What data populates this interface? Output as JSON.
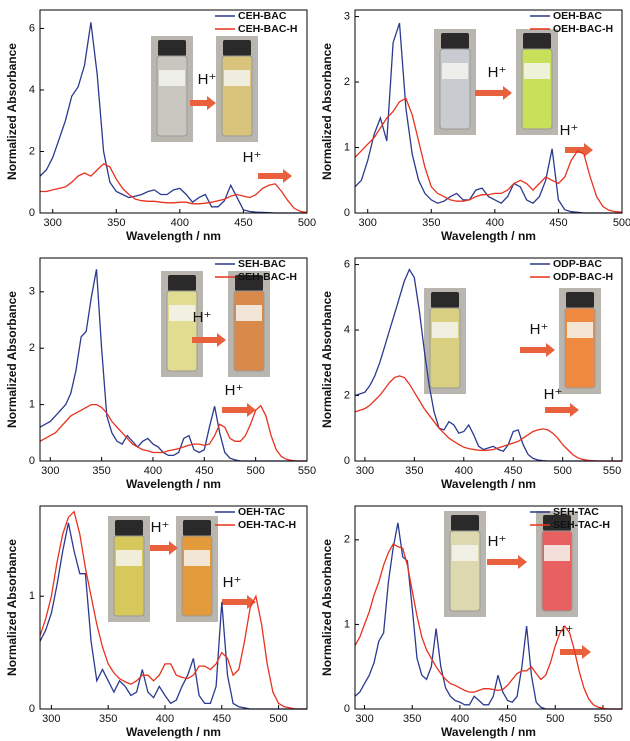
{
  "chart_data": [
    {
      "type": "line",
      "xlabel": "Wavelength / nm",
      "ylabel": "Normalized Absorbance",
      "xlim": [
        290,
        500
      ],
      "xticks": [
        300,
        350,
        400,
        450,
        500
      ],
      "ylim": [
        0,
        6.6
      ],
      "yticks": [
        0,
        2,
        4,
        6
      ],
      "annotations": [
        "H⁺",
        "H⁺"
      ],
      "x": [
        290,
        295,
        300,
        305,
        310,
        315,
        320,
        325,
        330,
        335,
        340,
        345,
        350,
        355,
        360,
        365,
        370,
        375,
        380,
        385,
        390,
        395,
        400,
        405,
        410,
        415,
        420,
        425,
        430,
        435,
        440,
        445,
        450,
        455,
        460,
        465,
        470,
        475,
        480,
        485,
        490,
        495,
        500
      ],
      "series": [
        {
          "name": "CEH-BAC",
          "color": "#2b3a8f",
          "values": [
            1.2,
            1.4,
            1.8,
            2.4,
            3.0,
            3.8,
            4.1,
            4.8,
            6.2,
            4.5,
            2.0,
            1.0,
            0.7,
            0.6,
            0.5,
            0.55,
            0.6,
            0.7,
            0.75,
            0.6,
            0.6,
            0.75,
            0.8,
            0.6,
            0.35,
            0.5,
            0.6,
            0.2,
            0.2,
            0.4,
            0.9,
            0.5,
            0.1,
            0.05,
            0.03,
            0.02,
            0.01,
            0,
            0,
            0,
            0,
            0,
            0
          ]
        },
        {
          "name": "CEH-BAC-H",
          "color": "#e8321e",
          "values": [
            0.7,
            0.7,
            0.75,
            0.8,
            0.85,
            1.0,
            1.2,
            1.3,
            1.2,
            1.4,
            1.6,
            1.5,
            1.1,
            0.8,
            0.6,
            0.45,
            0.4,
            0.38,
            0.38,
            0.35,
            0.33,
            0.33,
            0.35,
            0.35,
            0.3,
            0.3,
            0.32,
            0.35,
            0.4,
            0.45,
            0.55,
            0.6,
            0.55,
            0.5,
            0.6,
            0.8,
            0.9,
            0.95,
            0.7,
            0.4,
            0.15,
            0.05,
            0.02
          ]
        }
      ]
    },
    {
      "type": "line",
      "xlabel": "Wavelength / nm",
      "ylabel": "Normalized Absorbance",
      "xlim": [
        290,
        500
      ],
      "xticks": [
        300,
        350,
        400,
        450,
        500
      ],
      "ylim": [
        0,
        3.1
      ],
      "yticks": [
        0,
        1,
        2,
        3
      ],
      "annotations": [
        "H⁺",
        "H⁺"
      ],
      "x": [
        290,
        295,
        300,
        305,
        310,
        315,
        320,
        325,
        330,
        335,
        340,
        345,
        350,
        355,
        360,
        365,
        370,
        375,
        380,
        385,
        390,
        395,
        400,
        405,
        410,
        415,
        420,
        425,
        430,
        435,
        440,
        445,
        450,
        455,
        460,
        465,
        470,
        475,
        480,
        485,
        490,
        495,
        500
      ],
      "series": [
        {
          "name": "OEH-BAC",
          "color": "#2b3a8f",
          "values": [
            0.4,
            0.5,
            0.8,
            1.2,
            1.45,
            1.1,
            2.6,
            2.9,
            1.6,
            0.9,
            0.5,
            0.3,
            0.2,
            0.15,
            0.18,
            0.25,
            0.3,
            0.2,
            0.2,
            0.35,
            0.38,
            0.25,
            0.2,
            0.15,
            0.25,
            0.45,
            0.4,
            0.2,
            0.15,
            0.25,
            0.5,
            0.98,
            0.2,
            0.05,
            0.02,
            0.01,
            0,
            0,
            0,
            0,
            0,
            0,
            0
          ]
        },
        {
          "name": "OEH-BAC-H",
          "color": "#e8321e",
          "values": [
            0.85,
            0.95,
            1.05,
            1.15,
            1.3,
            1.45,
            1.55,
            1.7,
            1.75,
            1.5,
            1.1,
            0.7,
            0.4,
            0.3,
            0.25,
            0.2,
            0.18,
            0.18,
            0.2,
            0.25,
            0.28,
            0.28,
            0.3,
            0.3,
            0.35,
            0.45,
            0.5,
            0.45,
            0.35,
            0.45,
            0.55,
            0.5,
            0.45,
            0.55,
            0.8,
            0.95,
            0.9,
            0.55,
            0.25,
            0.1,
            0.04,
            0.02,
            0.01
          ]
        }
      ]
    },
    {
      "type": "line",
      "xlabel": "Wavelength / nm",
      "ylabel": "Normalized Absorbance",
      "xlim": [
        290,
        550
      ],
      "xticks": [
        300,
        350,
        400,
        450,
        500,
        550
      ],
      "ylim": [
        0,
        3.6
      ],
      "yticks": [
        0,
        1,
        2,
        3
      ],
      "annotations": [
        "H⁺",
        "H⁺"
      ],
      "x": [
        290,
        295,
        300,
        305,
        310,
        315,
        320,
        325,
        330,
        335,
        340,
        345,
        350,
        355,
        360,
        365,
        370,
        375,
        380,
        385,
        390,
        395,
        400,
        405,
        410,
        415,
        420,
        425,
        430,
        435,
        440,
        445,
        450,
        455,
        460,
        465,
        470,
        475,
        480,
        485,
        490,
        495,
        500,
        505,
        510,
        515,
        520,
        525,
        530,
        535,
        540,
        545,
        550
      ],
      "series": [
        {
          "name": "SEH-BAC",
          "color": "#2b3a8f",
          "values": [
            0.6,
            0.65,
            0.7,
            0.8,
            0.9,
            1.0,
            1.2,
            1.6,
            2.2,
            2.3,
            2.9,
            3.4,
            2.0,
            0.8,
            0.5,
            0.35,
            0.3,
            0.45,
            0.35,
            0.25,
            0.35,
            0.4,
            0.3,
            0.25,
            0.15,
            0.1,
            0.1,
            0.15,
            0.4,
            0.45,
            0.2,
            0.15,
            0.2,
            0.6,
            0.97,
            0.5,
            0.15,
            0.05,
            0.02,
            0,
            0,
            0,
            0,
            0,
            0,
            0,
            0,
            0,
            0,
            0,
            0,
            0,
            0
          ]
        },
        {
          "name": "SEH-BAC-H",
          "color": "#e8321e",
          "values": [
            0.35,
            0.4,
            0.45,
            0.5,
            0.6,
            0.7,
            0.8,
            0.85,
            0.9,
            0.95,
            1.0,
            1.0,
            0.95,
            0.85,
            0.7,
            0.6,
            0.5,
            0.4,
            0.3,
            0.25,
            0.2,
            0.18,
            0.15,
            0.15,
            0.15,
            0.18,
            0.2,
            0.22,
            0.25,
            0.28,
            0.3,
            0.3,
            0.28,
            0.3,
            0.45,
            0.65,
            0.6,
            0.4,
            0.35,
            0.35,
            0.45,
            0.65,
            0.9,
            0.98,
            0.8,
            0.45,
            0.2,
            0.08,
            0.03,
            0.01,
            0,
            0,
            0
          ]
        }
      ]
    },
    {
      "type": "line",
      "xlabel": "Wavelength / nm",
      "ylabel": "Normalized Absorbance",
      "xlim": [
        290,
        560
      ],
      "xticks": [
        300,
        350,
        400,
        450,
        500,
        550
      ],
      "ylim": [
        0,
        6.2
      ],
      "yticks": [
        0,
        2,
        4,
        6
      ],
      "annotations": [
        "H⁺",
        "H⁺"
      ],
      "x": [
        290,
        295,
        300,
        305,
        310,
        315,
        320,
        325,
        330,
        335,
        340,
        345,
        350,
        355,
        360,
        365,
        370,
        375,
        380,
        385,
        390,
        395,
        400,
        405,
        410,
        415,
        420,
        425,
        430,
        435,
        440,
        445,
        450,
        455,
        460,
        465,
        470,
        475,
        480,
        485,
        490,
        495,
        500,
        505,
        510,
        515,
        520,
        525,
        530,
        535,
        540,
        545,
        550,
        555,
        560
      ],
      "series": [
        {
          "name": "ODP-BAC",
          "color": "#2b3a8f",
          "values": [
            2.0,
            2.05,
            2.1,
            2.3,
            2.6,
            3.0,
            3.5,
            4.0,
            4.5,
            5.0,
            5.5,
            5.85,
            5.6,
            4.6,
            3.4,
            2.3,
            1.5,
            1.0,
            0.95,
            1.2,
            1.1,
            0.85,
            0.9,
            1.1,
            0.8,
            0.45,
            0.35,
            0.4,
            0.45,
            0.35,
            0.3,
            0.5,
            0.9,
            0.95,
            0.5,
            0.2,
            0.08,
            0.03,
            0.01,
            0,
            0,
            0,
            0,
            0,
            0,
            0,
            0,
            0,
            0,
            0,
            0,
            0,
            0,
            0,
            0
          ]
        },
        {
          "name": "ODP-BAC-H",
          "color": "#e8321e",
          "values": [
            1.5,
            1.55,
            1.6,
            1.7,
            1.85,
            2.0,
            2.2,
            2.4,
            2.55,
            2.6,
            2.55,
            2.35,
            2.1,
            1.85,
            1.6,
            1.4,
            1.2,
            1.0,
            0.85,
            0.7,
            0.6,
            0.5,
            0.42,
            0.38,
            0.35,
            0.33,
            0.32,
            0.33,
            0.35,
            0.4,
            0.45,
            0.5,
            0.55,
            0.6,
            0.7,
            0.8,
            0.9,
            0.95,
            0.98,
            0.95,
            0.85,
            0.7,
            0.5,
            0.35,
            0.2,
            0.1,
            0.05,
            0.02,
            0.01,
            0,
            0,
            0,
            0,
            0,
            0
          ]
        }
      ]
    },
    {
      "type": "line",
      "xlabel": "Wavelength / nm",
      "ylabel": "Normalized Absorbance",
      "xlim": [
        290,
        525
      ],
      "xticks": [
        300,
        350,
        400,
        450,
        500
      ],
      "ylim": [
        0,
        1.8
      ],
      "yticks": [
        0,
        1
      ],
      "annotations": [
        "H⁺",
        "H⁺"
      ],
      "x": [
        290,
        295,
        300,
        305,
        310,
        315,
        320,
        325,
        330,
        335,
        340,
        345,
        350,
        355,
        360,
        365,
        370,
        375,
        380,
        385,
        390,
        395,
        400,
        405,
        410,
        415,
        420,
        425,
        430,
        435,
        440,
        445,
        450,
        455,
        460,
        465,
        470,
        475,
        480,
        485,
        490,
        495,
        500,
        505,
        510,
        515,
        520,
        525
      ],
      "series": [
        {
          "name": "OEH-TAC",
          "color": "#2b3a8f",
          "values": [
            0.6,
            0.7,
            0.85,
            1.1,
            1.4,
            1.65,
            1.4,
            1.2,
            1.2,
            0.6,
            0.25,
            0.35,
            0.25,
            0.15,
            0.25,
            0.2,
            0.12,
            0.15,
            0.35,
            0.15,
            0.1,
            0.2,
            0.12,
            0.05,
            0.08,
            0.2,
            0.3,
            0.45,
            0.12,
            0.05,
            0.05,
            0.2,
            0.95,
            0.3,
            0.05,
            0.02,
            0.01,
            0,
            0,
            0,
            0,
            0,
            0,
            0,
            0,
            0,
            0,
            0
          ]
        },
        {
          "name": "OEH-TAC-H",
          "color": "#e8321e",
          "values": [
            0.65,
            0.8,
            1.0,
            1.3,
            1.55,
            1.7,
            1.75,
            1.55,
            1.25,
            1.0,
            0.75,
            0.55,
            0.4,
            0.32,
            0.27,
            0.24,
            0.22,
            0.25,
            0.3,
            0.3,
            0.25,
            0.3,
            0.4,
            0.4,
            0.3,
            0.28,
            0.27,
            0.3,
            0.38,
            0.38,
            0.35,
            0.4,
            0.5,
            0.45,
            0.3,
            0.35,
            0.6,
            0.9,
            1.0,
            0.75,
            0.4,
            0.15,
            0.05,
            0.02,
            0.01,
            0,
            0,
            0
          ]
        }
      ]
    },
    {
      "type": "line",
      "xlabel": "Wavelength / nm",
      "ylabel": "Normalized Absorbance",
      "xlim": [
        290,
        570
      ],
      "xticks": [
        300,
        350,
        400,
        450,
        500,
        550
      ],
      "ylim": [
        0,
        2.4
      ],
      "yticks": [
        0,
        1,
        2
      ],
      "annotations": [
        "H⁺",
        "H⁺"
      ],
      "x": [
        290,
        295,
        300,
        305,
        310,
        315,
        320,
        325,
        330,
        335,
        340,
        345,
        350,
        355,
        360,
        365,
        370,
        375,
        380,
        385,
        390,
        395,
        400,
        405,
        410,
        415,
        420,
        425,
        430,
        435,
        440,
        445,
        450,
        455,
        460,
        465,
        470,
        475,
        480,
        485,
        490,
        495,
        500,
        505,
        510,
        515,
        520,
        525,
        530,
        535,
        540,
        545,
        550,
        555,
        560,
        565,
        570
      ],
      "series": [
        {
          "name": "SEH-TAC",
          "color": "#2b3a8f",
          "values": [
            0.15,
            0.2,
            0.3,
            0.4,
            0.55,
            0.8,
            0.9,
            1.5,
            1.9,
            2.2,
            1.8,
            1.75,
            1.2,
            0.6,
            0.4,
            0.35,
            0.5,
            0.95,
            0.5,
            0.25,
            0.15,
            0.1,
            0.08,
            0.05,
            0.05,
            0.15,
            0.1,
            0.05,
            0.05,
            0.15,
            0.4,
            0.2,
            0.1,
            0.08,
            0.15,
            0.5,
            0.98,
            0.4,
            0.08,
            0.02,
            0,
            0,
            0,
            0,
            0,
            0,
            0,
            0,
            0,
            0,
            0,
            0,
            0,
            0,
            0,
            0,
            0
          ]
        },
        {
          "name": "SEH-TAC-H",
          "color": "#e8321e",
          "values": [
            0.75,
            0.85,
            1.0,
            1.15,
            1.35,
            1.5,
            1.7,
            1.85,
            1.95,
            1.92,
            1.9,
            1.7,
            1.4,
            1.1,
            0.85,
            0.7,
            0.6,
            0.5,
            0.42,
            0.35,
            0.3,
            0.28,
            0.25,
            0.22,
            0.2,
            0.2,
            0.22,
            0.24,
            0.24,
            0.23,
            0.22,
            0.23,
            0.28,
            0.35,
            0.42,
            0.45,
            0.45,
            0.5,
            0.42,
            0.35,
            0.4,
            0.55,
            0.75,
            0.9,
            0.98,
            0.9,
            0.7,
            0.45,
            0.25,
            0.12,
            0.05,
            0.02,
            0.01,
            0,
            0,
            0,
            0
          ]
        }
      ]
    }
  ]
}
